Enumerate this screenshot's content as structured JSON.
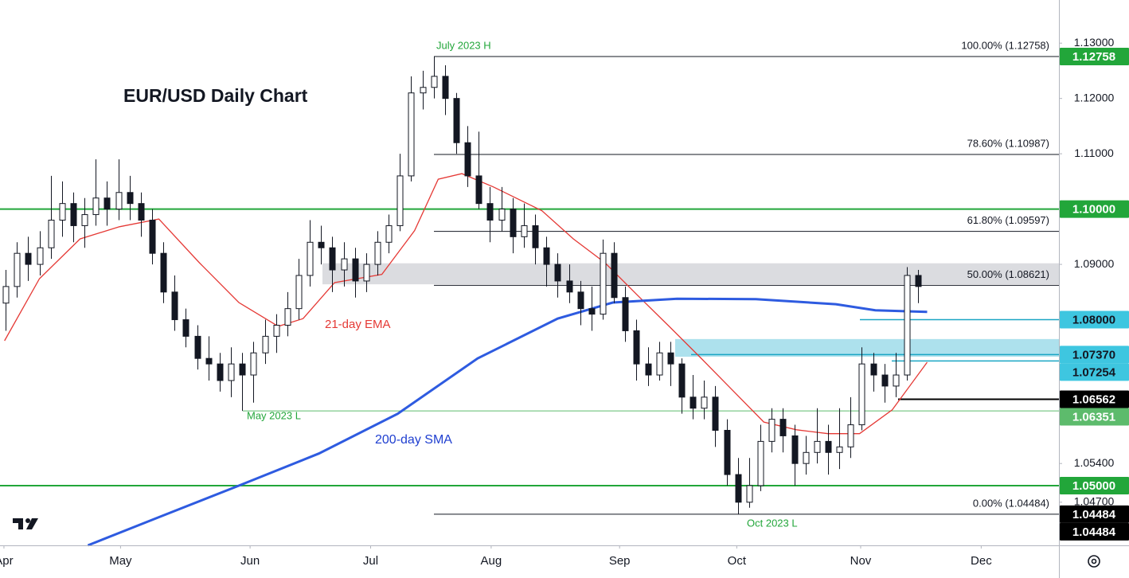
{
  "chart_data": {
    "type": "candlestick",
    "title": "EUR/USD Daily Chart",
    "ylim": [
      1.0392,
      1.1378
    ],
    "yticks": [
      {
        "value": 1.13,
        "label": "1.13000"
      },
      {
        "value": 1.12,
        "label": "1.12000"
      },
      {
        "value": 1.11,
        "label": "1.11000"
      },
      {
        "value": 1.09,
        "label": "1.09000"
      },
      {
        "value": 1.054,
        "label": "1.05400"
      },
      {
        "value": 1.047,
        "label": "1.04700"
      }
    ],
    "xlim": [
      -0.5,
      93.5
    ],
    "xticks": [
      {
        "value": -0.15,
        "label": "Apr"
      },
      {
        "value": 10.2,
        "label": "May"
      },
      {
        "value": 21.7,
        "label": "Jun"
      },
      {
        "value": 32.4,
        "label": "Jul"
      },
      {
        "value": 43.1,
        "label": "Aug"
      },
      {
        "value": 54.5,
        "label": "Sep"
      },
      {
        "value": 64.9,
        "label": "Oct"
      },
      {
        "value": 75.9,
        "label": "Nov"
      },
      {
        "value": 86.6,
        "label": "Dec"
      }
    ],
    "ohlc": [
      [
        1.083,
        1.089,
        1.078,
        1.086
      ],
      [
        1.086,
        1.094,
        1.084,
        1.092
      ],
      [
        1.092,
        1.095,
        1.087,
        1.09
      ],
      [
        1.09,
        1.096,
        1.088,
        1.093
      ],
      [
        1.093,
        1.106,
        1.091,
        1.098
      ],
      [
        1.098,
        1.105,
        1.095,
        1.101
      ],
      [
        1.101,
        1.103,
        1.094,
        1.097
      ],
      [
        1.097,
        1.102,
        1.093,
        1.099
      ],
      [
        1.099,
        1.109,
        1.097,
        1.102
      ],
      [
        1.102,
        1.105,
        1.097,
        1.1
      ],
      [
        1.1,
        1.109,
        1.098,
        1.103
      ],
      [
        1.103,
        1.106,
        1.098,
        1.101
      ],
      [
        1.101,
        1.103,
        1.095,
        1.098
      ],
      [
        1.098,
        1.1,
        1.09,
        1.092
      ],
      [
        1.092,
        1.094,
        1.083,
        1.085
      ],
      [
        1.085,
        1.088,
        1.078,
        1.08
      ],
      [
        1.08,
        1.082,
        1.075,
        1.077
      ],
      [
        1.077,
        1.079,
        1.071,
        1.073
      ],
      [
        1.073,
        1.077,
        1.069,
        1.072
      ],
      [
        1.072,
        1.074,
        1.067,
        1.069
      ],
      [
        1.069,
        1.075,
        1.066,
        1.072
      ],
      [
        1.072,
        1.074,
        1.0635,
        1.07
      ],
      [
        1.07,
        1.076,
        1.065,
        1.074
      ],
      [
        1.074,
        1.08,
        1.072,
        1.077
      ],
      [
        1.077,
        1.081,
        1.074,
        1.079
      ],
      [
        1.079,
        1.085,
        1.077,
        1.082
      ],
      [
        1.082,
        1.091,
        1.08,
        1.088
      ],
      [
        1.088,
        1.098,
        1.086,
        1.094
      ],
      [
        1.094,
        1.097,
        1.09,
        1.093
      ],
      [
        1.093,
        1.095,
        1.085,
        1.089
      ],
      [
        1.089,
        1.094,
        1.086,
        1.091
      ],
      [
        1.091,
        1.093,
        1.084,
        1.087
      ],
      [
        1.087,
        1.092,
        1.085,
        1.09
      ],
      [
        1.09,
        1.096,
        1.088,
        1.094
      ],
      [
        1.094,
        1.099,
        1.092,
        1.097
      ],
      [
        1.097,
        1.11,
        1.096,
        1.106
      ],
      [
        1.106,
        1.124,
        1.105,
        1.121
      ],
      [
        1.121,
        1.125,
        1.118,
        1.122
      ],
      [
        1.122,
        1.12758,
        1.12,
        1.124
      ],
      [
        1.124,
        1.126,
        1.117,
        1.12
      ],
      [
        1.12,
        1.121,
        1.11,
        1.112
      ],
      [
        1.112,
        1.115,
        1.104,
        1.106
      ],
      [
        1.106,
        1.114,
        1.1,
        1.101
      ],
      [
        1.101,
        1.104,
        1.094,
        1.098
      ],
      [
        1.098,
        1.104,
        1.096,
        1.1
      ],
      [
        1.1,
        1.102,
        1.092,
        1.095
      ],
      [
        1.095,
        1.101,
        1.093,
        1.097
      ],
      [
        1.097,
        1.099,
        1.09,
        1.093
      ],
      [
        1.093,
        1.095,
        1.086,
        1.09
      ],
      [
        1.09,
        1.092,
        1.084,
        1.087
      ],
      [
        1.087,
        1.09,
        1.083,
        1.085
      ],
      [
        1.085,
        1.087,
        1.079,
        1.082
      ],
      [
        1.082,
        1.086,
        1.078,
        1.081
      ],
      [
        1.081,
        1.0945,
        1.08,
        1.092
      ],
      [
        1.092,
        1.094,
        1.083,
        1.084
      ],
      [
        1.084,
        1.086,
        1.076,
        1.078
      ],
      [
        1.078,
        1.08,
        1.069,
        1.072
      ],
      [
        1.072,
        1.075,
        1.068,
        1.07
      ],
      [
        1.07,
        1.076,
        1.069,
        1.074
      ],
      [
        1.074,
        1.076,
        1.068,
        1.072
      ],
      [
        1.072,
        1.073,
        1.063,
        1.066
      ],
      [
        1.066,
        1.07,
        1.062,
        1.064
      ],
      [
        1.064,
        1.069,
        1.062,
        1.066
      ],
      [
        1.066,
        1.068,
        1.057,
        1.06
      ],
      [
        1.06,
        1.062,
        1.05,
        1.052
      ],
      [
        1.052,
        1.055,
        1.04484,
        1.047
      ],
      [
        1.047,
        1.055,
        1.046,
        1.05
      ],
      [
        1.05,
        1.061,
        1.049,
        1.058
      ],
      [
        1.058,
        1.064,
        1.056,
        1.062
      ],
      [
        1.062,
        1.064,
        1.056,
        1.059
      ],
      [
        1.059,
        1.061,
        1.05,
        1.054
      ],
      [
        1.054,
        1.059,
        1.052,
        1.056
      ],
      [
        1.056,
        1.064,
        1.054,
        1.058
      ],
      [
        1.058,
        1.061,
        1.052,
        1.056
      ],
      [
        1.056,
        1.064,
        1.053,
        1.057
      ],
      [
        1.057,
        1.066,
        1.055,
        1.061
      ],
      [
        1.061,
        1.075,
        1.06,
        1.072
      ],
      [
        1.072,
        1.074,
        1.067,
        1.07
      ],
      [
        1.07,
        1.072,
        1.065,
        1.068
      ],
      [
        1.068,
        1.074,
        1.066,
        1.07
      ],
      [
        1.07,
        1.0895,
        1.069,
        1.088
      ],
      [
        1.088,
        1.089,
        1.083,
        1.086
      ]
    ],
    "indicators": [
      {
        "name": "21-day EMA",
        "color": "#e53935",
        "x": [
          -0.1,
          3.0,
          6.6,
          10.1,
          13.6,
          17.2,
          20.7,
          24.2,
          26.4,
          29.2,
          33.4,
          36.3,
          38.4,
          40.5,
          43.3,
          47.6,
          50.4,
          53.2,
          56.0,
          58.9,
          61.7,
          64.5,
          67.3,
          70.2,
          73.0,
          75.8,
          78.7,
          81.8
        ],
        "values": [
          1.0762,
          1.0874,
          1.0946,
          1.0968,
          1.0982,
          1.0903,
          1.0831,
          1.0788,
          1.0802,
          1.0867,
          1.0882,
          1.0961,
          1.1054,
          1.1064,
          1.104,
          1.0997,
          1.0946,
          1.0903,
          1.0846,
          1.0788,
          1.0731,
          1.0673,
          1.0615,
          1.0601,
          1.0594,
          1.0594,
          1.0637,
          1.0723
        ]
      },
      {
        "name": "200-day SMA",
        "color": "#2e5be0",
        "x": [
          7.3,
          13.6,
          20.7,
          27.8,
          34.8,
          41.9,
          49.0,
          53.9,
          59.6,
          66.6,
          73.7,
          77.2,
          81.8
        ],
        "values": [
          1.0392,
          1.0443,
          1.05,
          1.0558,
          1.063,
          1.073,
          1.0802,
          1.0831,
          1.0838,
          1.0837,
          1.0828,
          1.0817,
          1.0814
        ]
      }
    ],
    "zones": [
      {
        "low": 1.0864,
        "high": 1.0902,
        "color": "#d5d6da"
      },
      {
        "low": 1.0733,
        "high": 1.0765,
        "color": "#9fdcea"
      }
    ],
    "fib_levels": [
      {
        "value": 1.12758,
        "label": "100.00% (1.12758)"
      },
      {
        "value": 1.10987,
        "label": "78.60% (1.10987)"
      },
      {
        "value": 1.09597,
        "label": "61.80% (1.09597)"
      },
      {
        "value": 1.08621,
        "label": "50.00% (1.08621)"
      },
      {
        "value": 1.04484,
        "label": "0.00% (1.04484)"
      }
    ],
    "price_labels": [
      {
        "value": 1.12758,
        "label": "1.12758",
        "color": "#22a63a"
      },
      {
        "value": 1.1,
        "label": "1.10000",
        "color": "#22a63a"
      },
      {
        "value": 1.08,
        "label": "1.08000",
        "color": "#3ec6e0"
      },
      {
        "value": 1.0737,
        "label": "1.07370",
        "color": "#3ec6e0"
      },
      {
        "value": 1.07254,
        "label": "1.07254",
        "color": "#3ec6e0"
      },
      {
        "value": 1.06562,
        "label": "1.06562",
        "color": "#000000"
      },
      {
        "value": 1.06351,
        "label": "1.06351",
        "color": "#5dbb6c"
      },
      {
        "value": 1.05,
        "label": "1.05000",
        "color": "#22a63a"
      },
      {
        "value": 1.04484,
        "label": "1.04484",
        "color": "#000000"
      },
      {
        "value": 1.04484,
        "label": "1.04484",
        "color": "#000000"
      }
    ],
    "annotations": [
      {
        "text": "July 2023 H",
        "color": "#22a63a"
      },
      {
        "text": "May 2023 L",
        "color": "#22a63a"
      },
      {
        "text": "Oct 2023 L",
        "color": "#22a63a"
      },
      {
        "text": "21-day EMA",
        "color": "#e53935"
      },
      {
        "text": "200-day SMA",
        "color": "#1f3fd0"
      }
    ]
  }
}
